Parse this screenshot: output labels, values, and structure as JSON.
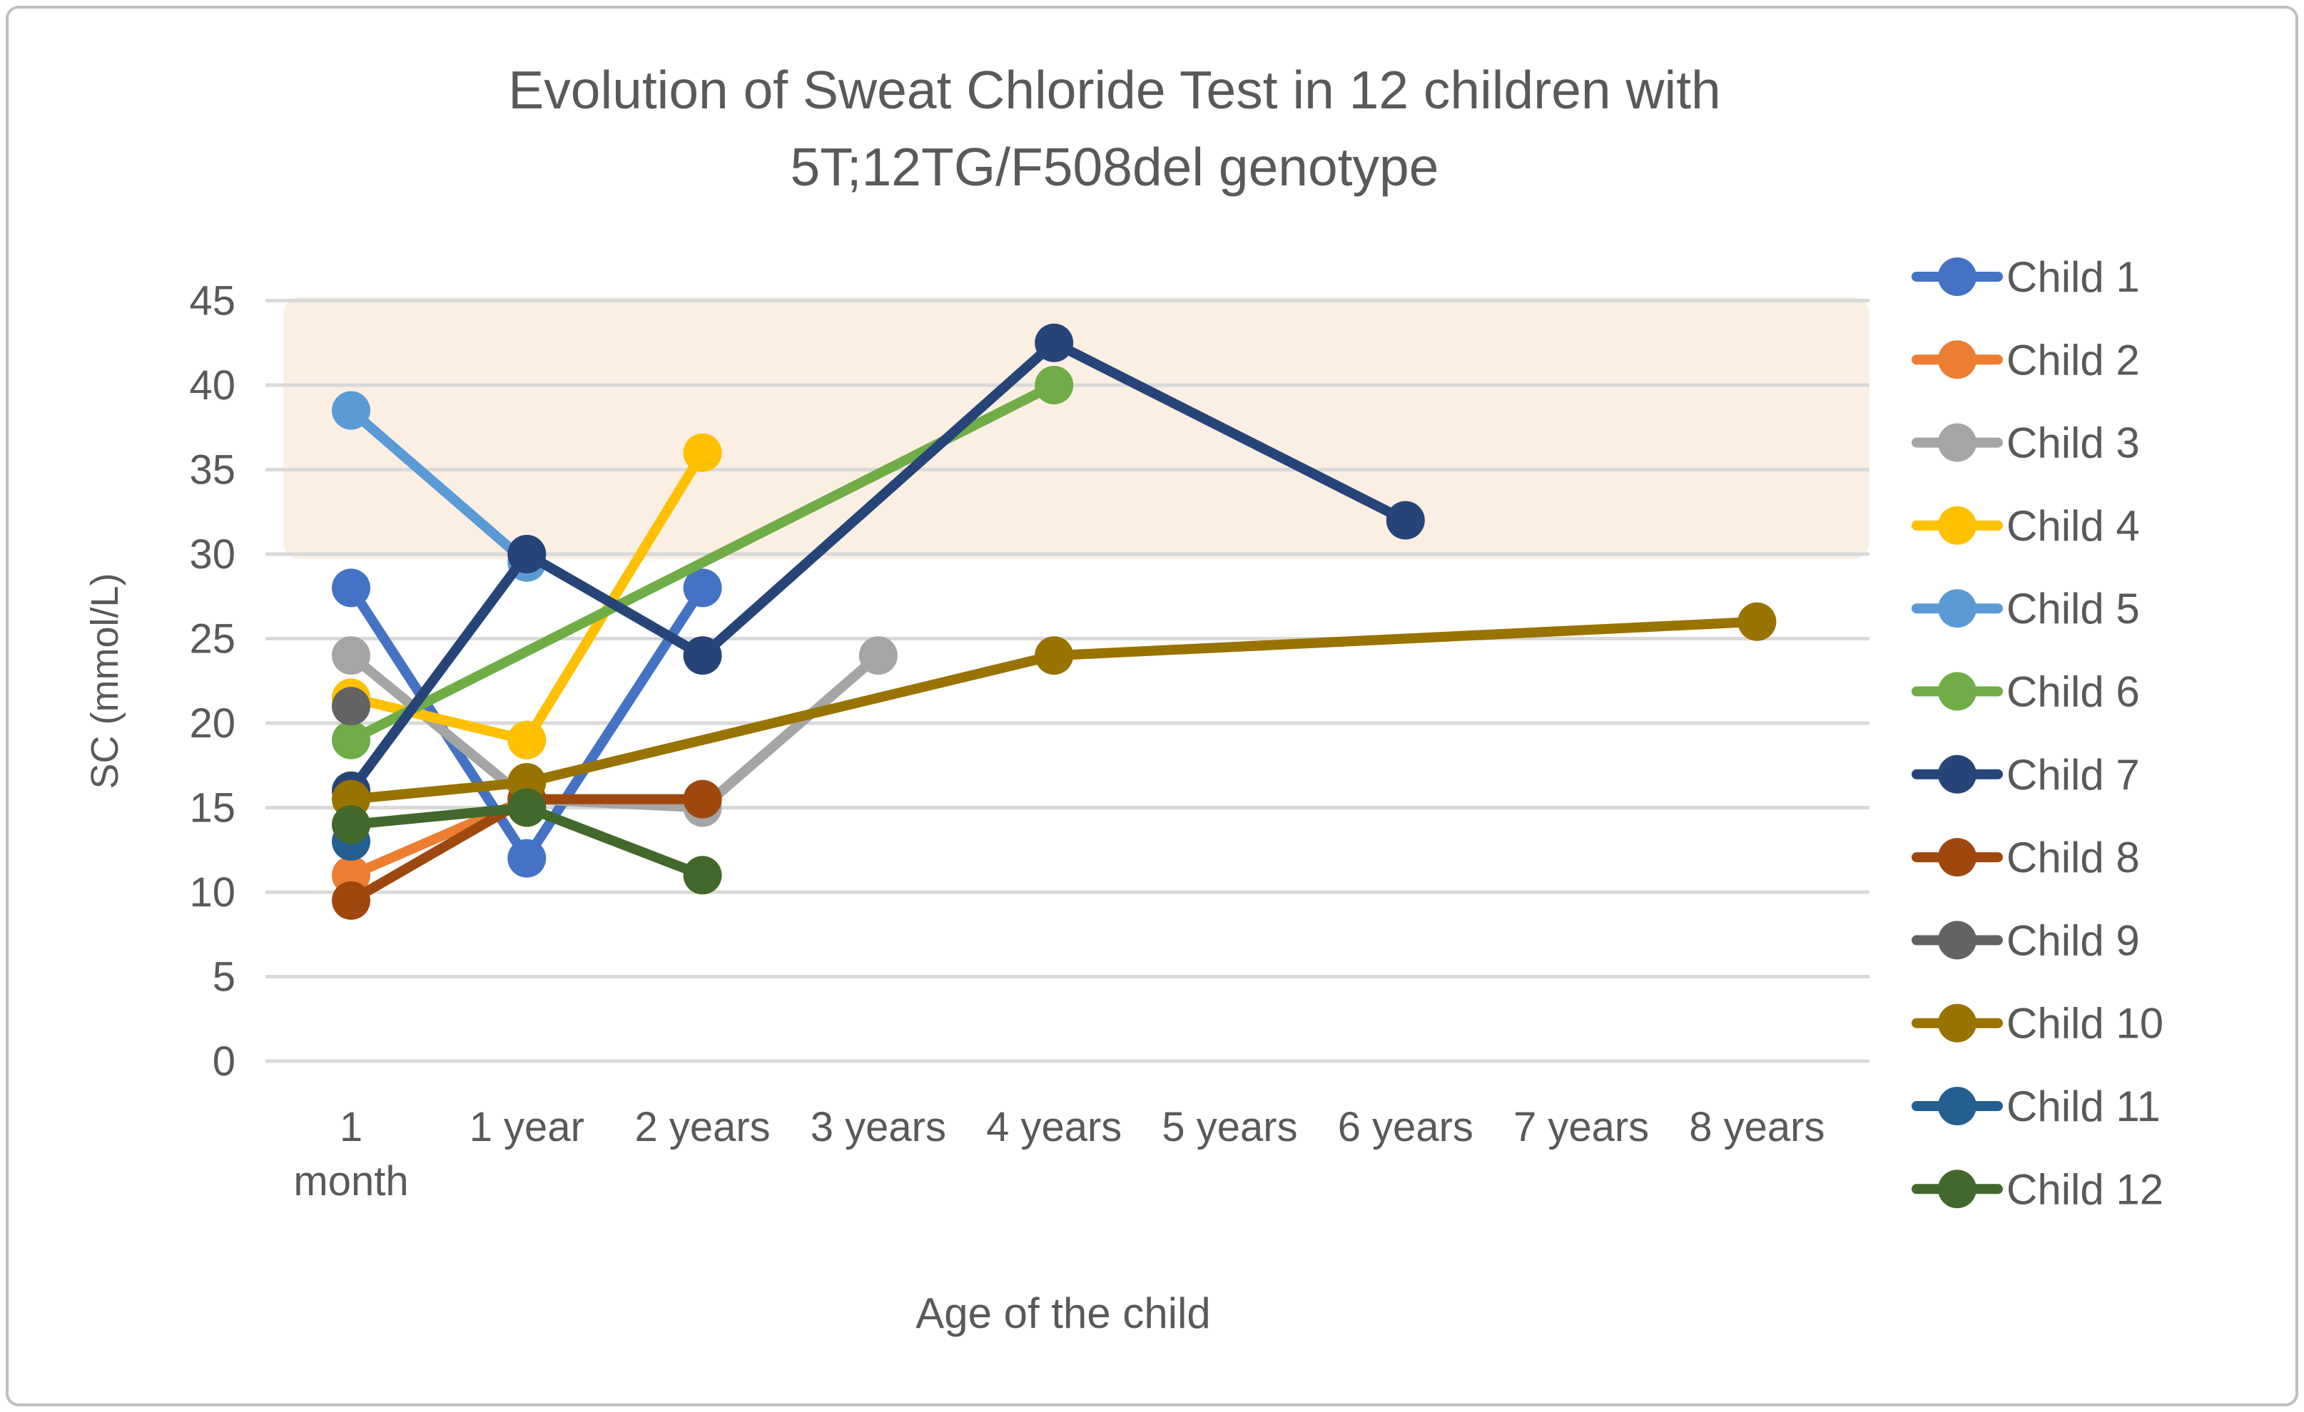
{
  "title_lines": [
    "Evolution of Sweat Chloride Test in 12 children with",
    "5T;12TG/F508del genotype"
  ],
  "colors": {
    "title_text": "#595959",
    "axis_text": "#595959",
    "gridline": "#D9D9D9",
    "page_border": "#BFBFBF",
    "reference_band": "#FBEFE3"
  },
  "chart_data": {
    "type": "line",
    "title": "Evolution of Sweat Chloride Test in 12 children with 5T;12TG/F508del genotype",
    "xlabel": "Age of the child",
    "ylabel": "SC (mmol/L)",
    "ylim": [
      0,
      45
    ],
    "y_tick_step": 5,
    "y_ticks": [
      0,
      5,
      10,
      15,
      20,
      25,
      30,
      35,
      40,
      45
    ],
    "grid": true,
    "legend_position": "right",
    "reference_band": {
      "from": 29.7,
      "to": 45.2
    },
    "categories": [
      "1 month",
      "1 year",
      "2 years",
      "3 years",
      "4 years",
      "5 years",
      "6 years",
      "7 years",
      "8 years"
    ],
    "category_display_lines": [
      [
        "1",
        "month"
      ],
      [
        "1 year"
      ],
      [
        "2 years"
      ],
      [
        "3 years"
      ],
      [
        "4 years"
      ],
      [
        "5 years"
      ],
      [
        "6 years"
      ],
      [
        "7 years"
      ],
      [
        "8 years"
      ]
    ],
    "series": [
      {
        "name": "Child 1",
        "color": "#4472C4",
        "values": [
          28,
          12,
          28,
          null,
          null,
          null,
          null,
          null,
          null
        ]
      },
      {
        "name": "Child 2",
        "color": "#ED7D31",
        "values": [
          11,
          15.5,
          null,
          null,
          null,
          null,
          null,
          null,
          null
        ]
      },
      {
        "name": "Child 3",
        "color": "#A5A5A5",
        "values": [
          24,
          15.5,
          15,
          24,
          null,
          null,
          null,
          null,
          null
        ]
      },
      {
        "name": "Child 4",
        "color": "#FFC000",
        "values": [
          21.5,
          19,
          36,
          null,
          null,
          null,
          null,
          null,
          null
        ]
      },
      {
        "name": "Child 5",
        "color": "#5B9BD5",
        "values": [
          38.5,
          29.5,
          null,
          null,
          null,
          null,
          null,
          null,
          null
        ]
      },
      {
        "name": "Child 6",
        "color": "#70AD47",
        "values": [
          19,
          null,
          null,
          null,
          40,
          null,
          null,
          null,
          null
        ]
      },
      {
        "name": "Child 7",
        "color": "#264478",
        "values": [
          16,
          30,
          24,
          null,
          42.5,
          null,
          32,
          null,
          null
        ]
      },
      {
        "name": "Child 8",
        "color": "#9E480E",
        "values": [
          9.5,
          15.5,
          15.5,
          null,
          null,
          null,
          null,
          null,
          null
        ]
      },
      {
        "name": "Child 9",
        "color": "#636363",
        "values": [
          21,
          null,
          null,
          null,
          null,
          null,
          null,
          null,
          null
        ]
      },
      {
        "name": "Child 10",
        "color": "#997300",
        "values": [
          15.5,
          16.5,
          null,
          null,
          24,
          null,
          null,
          null,
          26
        ]
      },
      {
        "name": "Child 11",
        "color": "#255E91",
        "values": [
          13,
          null,
          null,
          null,
          null,
          null,
          null,
          null,
          null
        ]
      },
      {
        "name": "Child 12",
        "color": "#43682B",
        "values": [
          14,
          15,
          11,
          null,
          null,
          null,
          null,
          null,
          null
        ]
      }
    ]
  }
}
